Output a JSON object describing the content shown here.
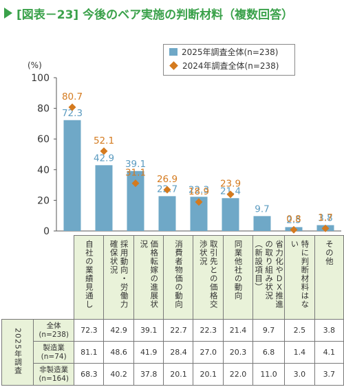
{
  "title": "[図表－23] 今後のベア実施の判断材料（複数回答）",
  "legend": {
    "series2025": "2025年調査全体(n=238)",
    "series2024": "2024年調査全体(n=238)"
  },
  "unit_label": "(%)",
  "colors": {
    "bar": "#6fa8c7",
    "marker": "#d47a1e",
    "title": "#3aa14a",
    "header_bg": "#e9f2d9"
  },
  "chart_data": {
    "type": "bar",
    "categories": [
      "自社の業績見通し",
      "採用動向・労働力確保状況",
      "価格転嫁の進展状況",
      "消費者物価の動向",
      "取引先との価格交渉状況",
      "同業他社の動向",
      "省力化やＤＸ推進の取り組み状況（新設項目）",
      "特に判断材料はない",
      "その他"
    ],
    "series": [
      {
        "name": "2025年調査全体(n=238)",
        "values": [
          72.3,
          42.9,
          39.1,
          22.7,
          22.3,
          21.4,
          9.7,
          2.5,
          3.8
        ]
      },
      {
        "name": "2024年調査全体(n=238)",
        "values": [
          80.7,
          52.1,
          31.1,
          26.9,
          18.9,
          23.9,
          null,
          0.8,
          1.7
        ]
      }
    ],
    "ylim": [
      0,
      100
    ],
    "yticks": [
      0,
      20,
      40,
      60,
      80,
      100
    ],
    "ylabel": "(%)"
  },
  "table": {
    "group_label": "2025年調査",
    "rows": [
      {
        "label": "全体\n(n=238)",
        "values": [
          "72.3",
          "42.9",
          "39.1",
          "22.7",
          "22.3",
          "21.4",
          "9.7",
          "2.5",
          "3.8"
        ]
      },
      {
        "label": "製造業\n(n=74)",
        "values": [
          "81.1",
          "48.6",
          "41.9",
          "28.4",
          "27.0",
          "20.3",
          "6.8",
          "1.4",
          "4.1"
        ]
      },
      {
        "label": "非製造業\n(n=164)",
        "values": [
          "68.3",
          "40.2",
          "37.8",
          "20.1",
          "20.1",
          "22.0",
          "11.0",
          "3.0",
          "3.7"
        ]
      }
    ]
  }
}
